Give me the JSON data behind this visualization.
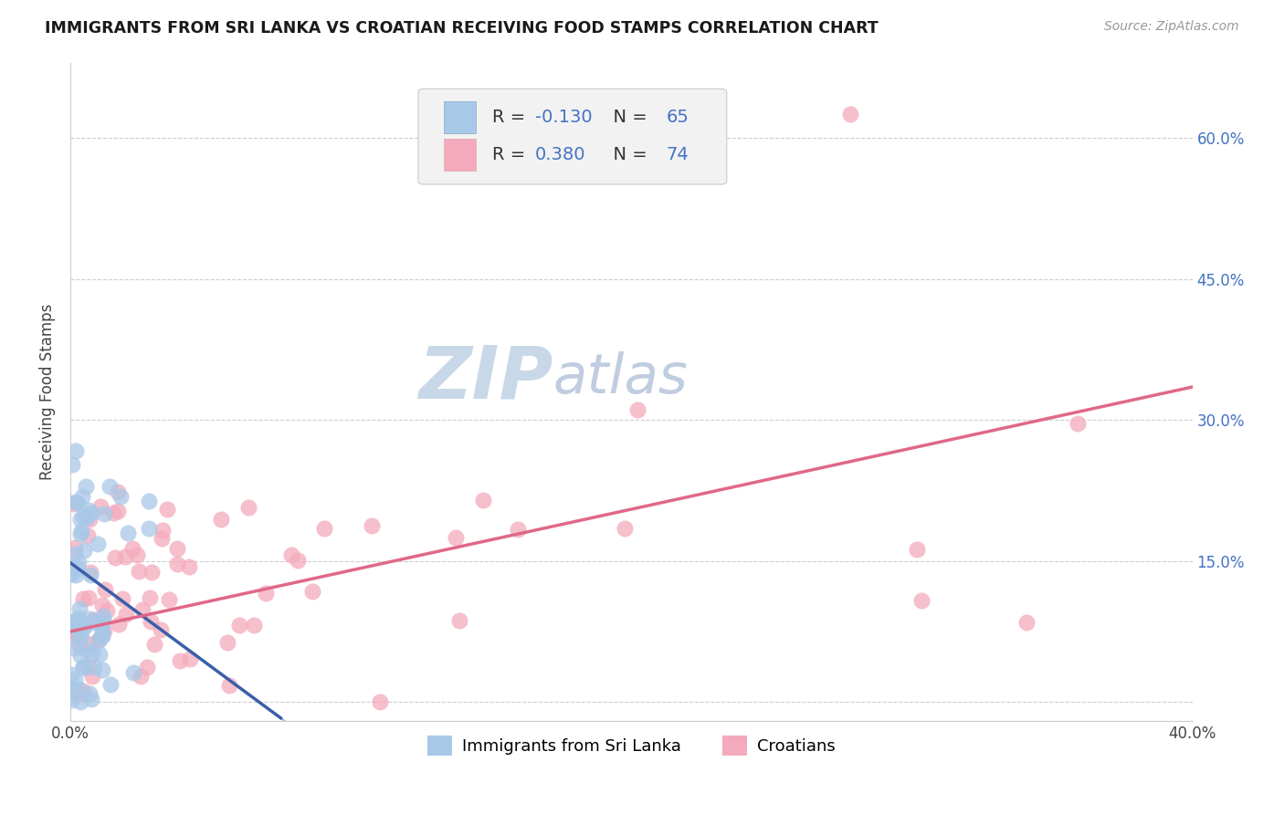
{
  "title": "IMMIGRANTS FROM SRI LANKA VS CROATIAN RECEIVING FOOD STAMPS CORRELATION CHART",
  "source": "Source: ZipAtlas.com",
  "ylabel": "Receiving Food Stamps",
  "xlim": [
    0.0,
    0.4
  ],
  "ylim": [
    -0.02,
    0.68
  ],
  "legend_label1": "Immigrants from Sri Lanka",
  "legend_label2": "Croatians",
  "R1": -0.13,
  "N1": 65,
  "R2": 0.38,
  "N2": 74,
  "color_sri_lanka": "#a8c8e8",
  "color_croatian": "#f4aabc",
  "color_line1": "#3a5faa",
  "color_line2": "#e06888",
  "color_dashed": "#aabbd0",
  "watermark_zip": "#c8d8e8",
  "watermark_atlas": "#c0cce0",
  "title_color": "#1a1a1a",
  "title_fontsize": 12.5,
  "right_tick_color": "#4472c4",
  "grid_color": "#cccccc",
  "dot_size": 170
}
